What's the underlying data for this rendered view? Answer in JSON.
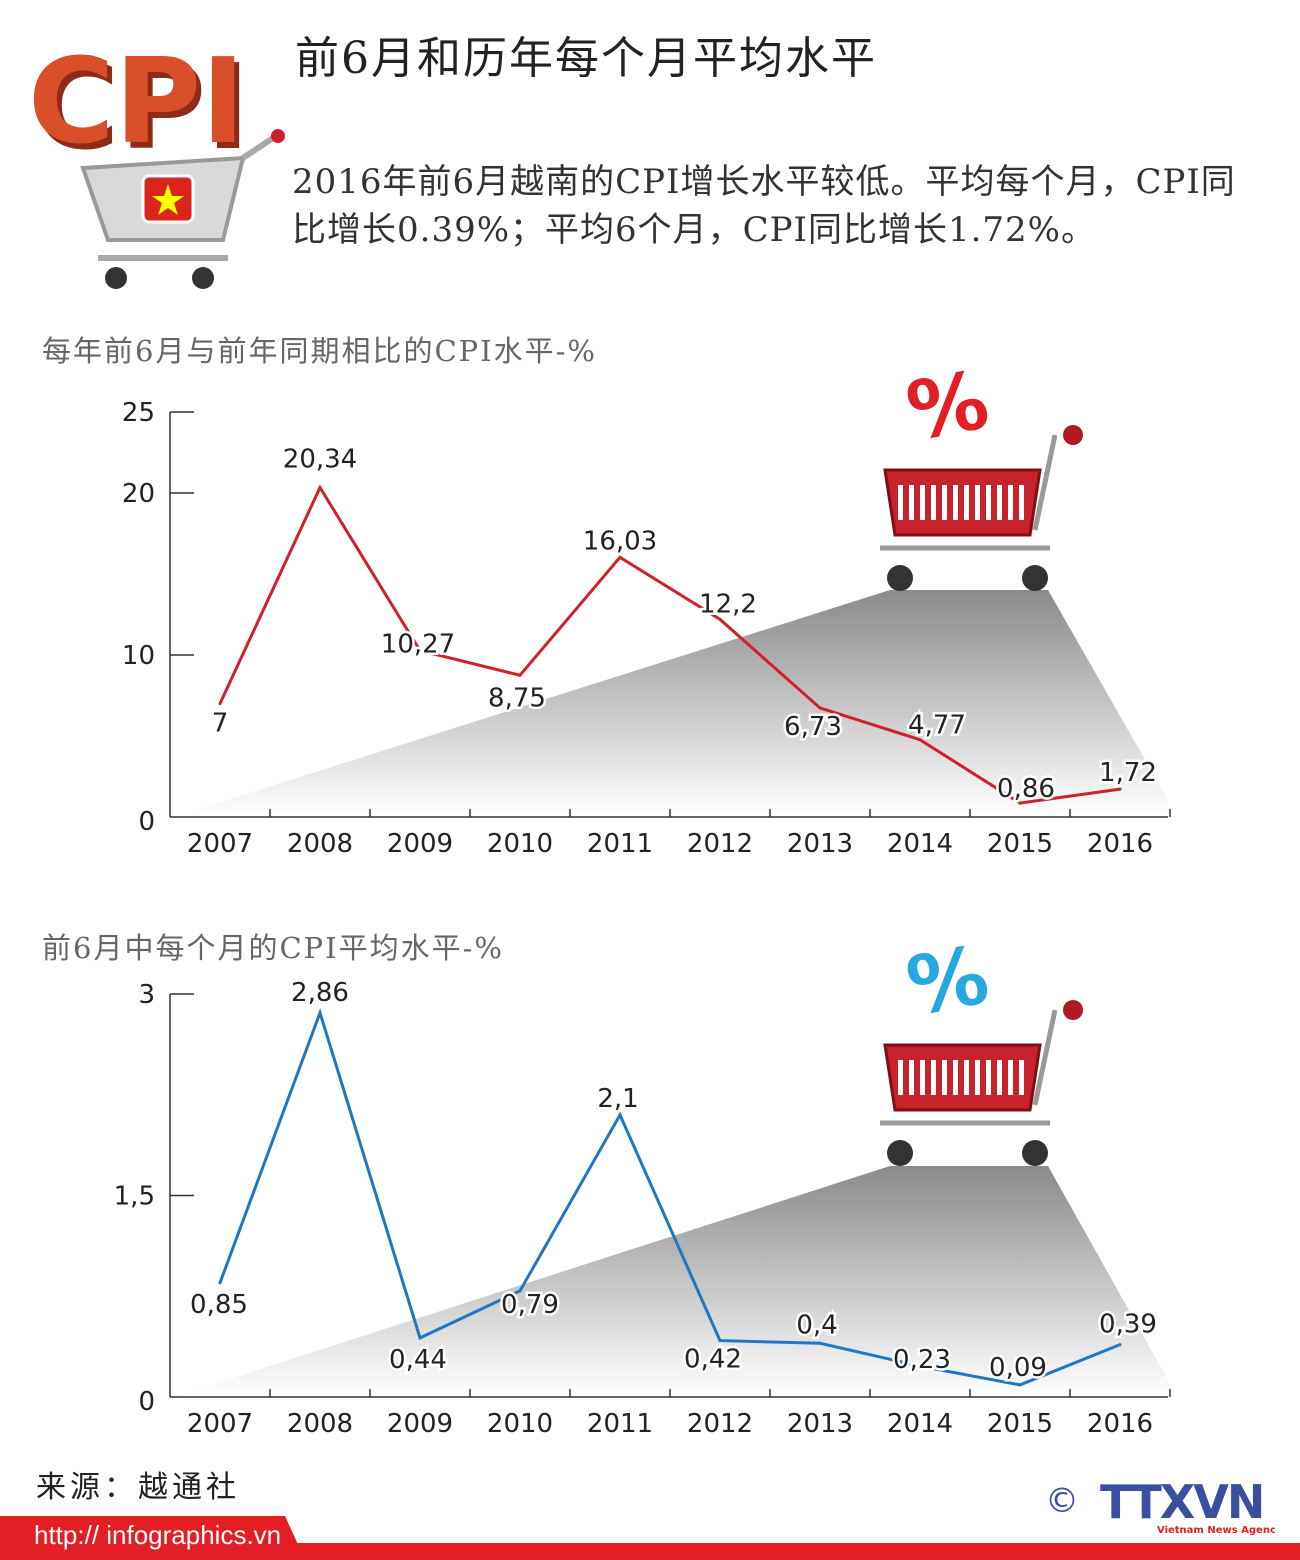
{
  "header": {
    "title": "前6月和历年每个月平均水平",
    "logo_text": "CPI",
    "intro": "2016年前6月越南的CPI增长水平较低。平均每个月，CPI同比增长0.39%；平均6个月，CPI同比增长1.72%。"
  },
  "colors": {
    "chart1_line": "#d0202e",
    "chart2_line": "#1f77c4",
    "brand_red": "#e31e24",
    "logo_blue": "#3b4fa0"
  },
  "chart_data": [
    {
      "type": "line",
      "title": "每年前6月与前年同期相比的CPI水平-%",
      "categories": [
        "2007",
        "2008",
        "2009",
        "2010",
        "2011",
        "2012",
        "2013",
        "2014",
        "2015",
        "2016"
      ],
      "values": [
        7,
        20.34,
        10.27,
        8.75,
        16.03,
        12.2,
        6.73,
        4.77,
        0.86,
        1.72
      ],
      "data_labels": [
        "7",
        "20,34",
        "10,27",
        "8,75",
        "16,03",
        "12,2",
        "6,73",
        "4,77",
        "0,86",
        "1,72"
      ],
      "yticks": [
        {
          "v": 0,
          "label": "0"
        },
        {
          "v": 10,
          "label": "10"
        },
        {
          "v": 20,
          "label": "20"
        },
        {
          "v": 25,
          "label": "25"
        }
      ],
      "ylim": [
        0,
        25
      ],
      "grid": false,
      "icon": "shopping-cart-percent-red"
    },
    {
      "type": "line",
      "title": "前6月中每个月的CPI平均水平-%",
      "categories": [
        "2007",
        "2008",
        "2009",
        "2010",
        "2011",
        "2012",
        "2013",
        "2014",
        "2015",
        "2016"
      ],
      "values": [
        0.85,
        2.86,
        0.44,
        0.79,
        2.1,
        0.42,
        0.4,
        0.23,
        0.09,
        0.39
      ],
      "data_labels": [
        "0,85",
        "2,86",
        "0,44",
        "0,79",
        "2,1",
        "0,42",
        "0,4",
        "0,23",
        "0,09",
        "0,39"
      ],
      "yticks": [
        {
          "v": 0,
          "label": "0"
        },
        {
          "v": 1.5,
          "label": "1,5"
        },
        {
          "v": 3,
          "label": "3"
        }
      ],
      "ylim": [
        0,
        3
      ],
      "grid": false,
      "icon": "shopping-cart-percent-blue"
    }
  ],
  "footer": {
    "source": "来源：越通社",
    "url": "http:// infographics.vn",
    "brand": "TTXVN",
    "brand_sub": "Vietnam News Agency",
    "copyright": "©"
  }
}
